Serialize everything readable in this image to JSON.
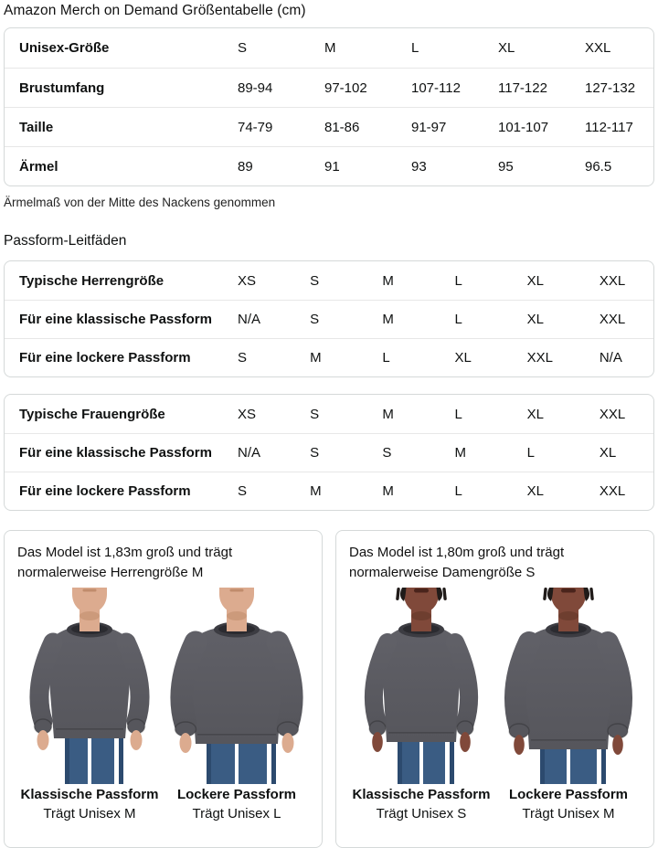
{
  "page": {
    "title": "Amazon Merch on Demand Größentabelle (cm)",
    "note": "Ärmelmaß von der Mitte des Nackens genommen",
    "fit_heading": "Passform-Leitfäden"
  },
  "size_table": {
    "rows": [
      {
        "label": "Unisex-Größe",
        "values": [
          "S",
          "M",
          "L",
          "XL",
          "XXL"
        ]
      },
      {
        "label": "Brustumfang",
        "values": [
          "89-94",
          "97-102",
          "107-112",
          "117-122",
          "127-132"
        ]
      },
      {
        "label": "Taille",
        "values": [
          "74-79",
          "81-86",
          "91-97",
          "101-107",
          "112-117"
        ]
      },
      {
        "label": "Ärmel",
        "values": [
          "89",
          "91",
          "93",
          "95",
          "96.5"
        ]
      }
    ]
  },
  "fit_table_men": {
    "rows": [
      {
        "label": "Typische Herrengröße",
        "values": [
          "XS",
          "S",
          "M",
          "L",
          "XL",
          "XXL"
        ]
      },
      {
        "label": "Für eine klassische Passform",
        "values": [
          "N/A",
          "S",
          "M",
          "L",
          "XL",
          "XXL"
        ]
      },
      {
        "label": "Für eine lockere Passform",
        "values": [
          "S",
          "M",
          "L",
          "XL",
          "XXL",
          "N/A"
        ]
      }
    ]
  },
  "fit_table_women": {
    "rows": [
      {
        "label": "Typische Frauengröße",
        "values": [
          "XS",
          "S",
          "M",
          "L",
          "XL",
          "XXL"
        ]
      },
      {
        "label": "Für eine klassische Passform",
        "values": [
          "N/A",
          "S",
          "S",
          "M",
          "L",
          "XL"
        ]
      },
      {
        "label": "Für eine lockere Passform",
        "values": [
          "S",
          "M",
          "M",
          "L",
          "XL",
          "XXL"
        ]
      }
    ]
  },
  "model_cards": [
    {
      "description": "Das Model ist 1,83m groß und trägt normalerweise Herrengröße M",
      "figure": "male",
      "photos": [
        {
          "fit": "classic",
          "caption_bold": "Klassische Passform",
          "caption": "Trägt Unisex M"
        },
        {
          "fit": "loose",
          "caption_bold": "Lockere Passform",
          "caption": "Trägt Unisex L"
        }
      ]
    },
    {
      "description": "Das Model ist 1,80m groß und trägt normalerweise Damengröße S",
      "figure": "female",
      "photos": [
        {
          "fit": "classic",
          "caption_bold": "Klassische Passform",
          "caption": "Trägt Unisex S"
        },
        {
          "fit": "loose",
          "caption_bold": "Lockere Passform",
          "caption": "Trägt Unisex M"
        }
      ]
    }
  ],
  "colors": {
    "text": "#0f1111",
    "table_border": "#d5d9d9",
    "row_divider": "#e7e7e7",
    "sweatshirt": "#56565c",
    "sweatshirt_light": "#606067",
    "sweatshirt_dark": "#3c3c42",
    "collar_shadow": "#2b2b30",
    "jeans": "#3a5c83",
    "jeans_dark": "#2c4a6e",
    "skin_male": "#dcab8f",
    "skin_male_shadow": "#c08c6c",
    "skin_female": "#80493a",
    "skin_female_shadow": "#5e3426",
    "hair_female": "#201b19"
  }
}
